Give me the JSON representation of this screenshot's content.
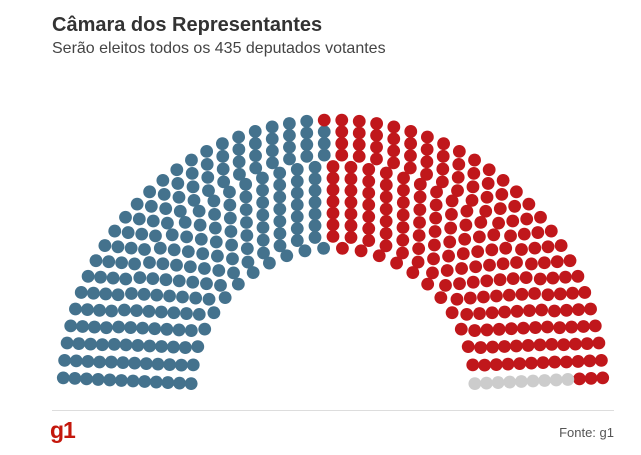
{
  "header": {
    "title": "Câmara dos Representantes",
    "subtitle": "Serão eleitos todos os 435 deputados votantes"
  },
  "footer": {
    "logo": "g1",
    "source": "Fonte: g1"
  },
  "colors": {
    "democrats": "#44728d",
    "republicans": "#c0171b",
    "undecided": "#cccccc"
  },
  "chart_data": {
    "type": "parliament",
    "total": 435,
    "series": [
      {
        "key": "democrats",
        "values": [
          213
        ]
      },
      {
        "key": "republicans",
        "values": [
          213
        ]
      },
      {
        "key": "undecided",
        "values": [
          9
        ]
      }
    ]
  }
}
